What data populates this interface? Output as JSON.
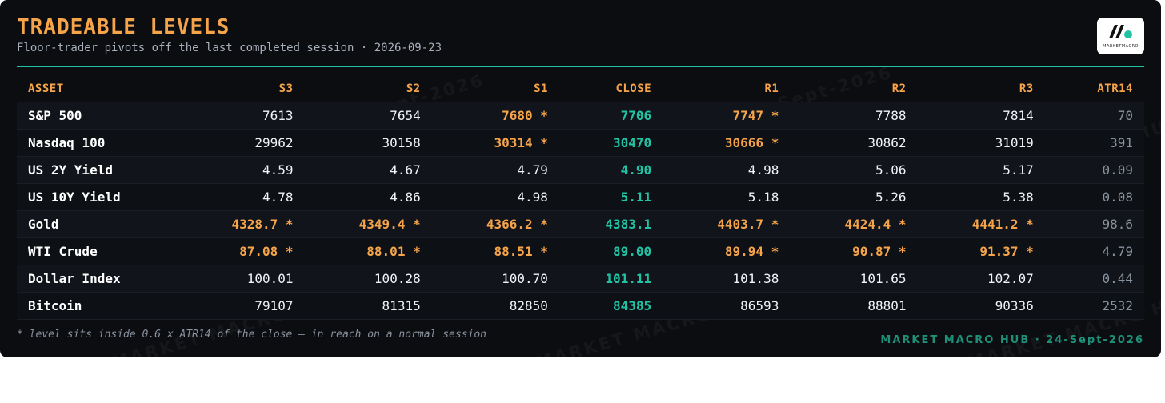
{
  "header": {
    "title": "TRADEABLE LEVELS",
    "subtitle": "Floor-trader pivots off the last completed session · 2026-09-23",
    "logo_label": "MARKETMACRO"
  },
  "watermark_text": "MARKET MACRO HUB · 24-Sept-2026",
  "table": {
    "columns": [
      "ASSET",
      "S3",
      "S2",
      "S1",
      "CLOSE",
      "R1",
      "R2",
      "R3",
      "ATR14"
    ],
    "rows": [
      {
        "asset": "S&P 500",
        "s3": "7613",
        "s2": "7654",
        "s1": "7680 *",
        "close": "7706",
        "r1": "7747 *",
        "r2": "7788",
        "r3": "7814",
        "atr14": "70"
      },
      {
        "asset": "Nasdaq 100",
        "s3": "29962",
        "s2": "30158",
        "s1": "30314 *",
        "close": "30470",
        "r1": "30666 *",
        "r2": "30862",
        "r3": "31019",
        "atr14": "391"
      },
      {
        "asset": "US 2Y Yield",
        "s3": "4.59",
        "s2": "4.67",
        "s1": "4.79",
        "close": "4.90",
        "r1": "4.98",
        "r2": "5.06",
        "r3": "5.17",
        "atr14": "0.09"
      },
      {
        "asset": "US 10Y Yield",
        "s3": "4.78",
        "s2": "4.86",
        "s1": "4.98",
        "close": "5.11",
        "r1": "5.18",
        "r2": "5.26",
        "r3": "5.38",
        "atr14": "0.08"
      },
      {
        "asset": "Gold",
        "s3": "4328.7 *",
        "s2": "4349.4 *",
        "s1": "4366.2 *",
        "close": "4383.1",
        "r1": "4403.7 *",
        "r2": "4424.4 *",
        "r3": "4441.2 *",
        "atr14": "98.6"
      },
      {
        "asset": "WTI Crude",
        "s3": "87.08 *",
        "s2": "88.01 *",
        "s1": "88.51 *",
        "close": "89.00",
        "r1": "89.94 *",
        "r2": "90.87 *",
        "r3": "91.37 *",
        "atr14": "4.79"
      },
      {
        "asset": "Dollar Index",
        "s3": "100.01",
        "s2": "100.28",
        "s1": "100.70",
        "close": "101.11",
        "r1": "101.38",
        "r2": "101.65",
        "r3": "102.07",
        "atr14": "0.44"
      },
      {
        "asset": "Bitcoin",
        "s3": "79107",
        "s2": "81315",
        "s1": "82850",
        "close": "84385",
        "r1": "86593",
        "r2": "88801",
        "r3": "90336",
        "atr14": "2532"
      }
    ]
  },
  "footer": {
    "footnote": "* level sits inside 0.6 x ATR14 of the close — in reach on a normal session",
    "brand": "MARKET MACRO HUB · 24-Sept-2026"
  },
  "colors": {
    "accent_orange": "#f5a44a",
    "accent_teal": "#22c3a4",
    "background": "#0b0d11"
  }
}
